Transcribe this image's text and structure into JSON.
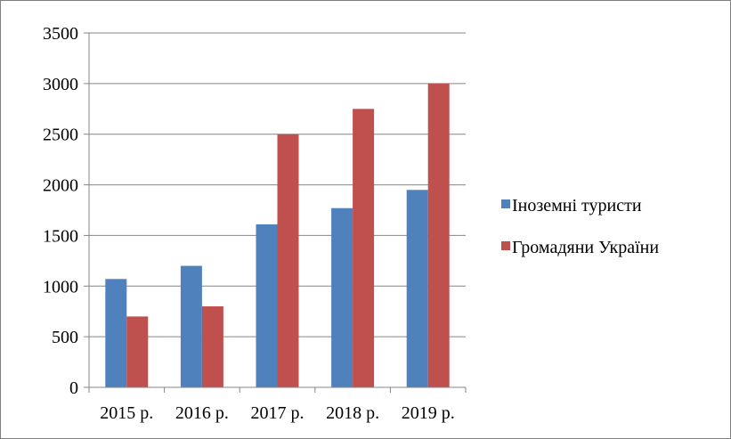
{
  "chart_data": {
    "type": "bar",
    "categories": [
      "2015 р.",
      "2016 р.",
      "2017 р.",
      "2018 р.",
      "2019 р."
    ],
    "series": [
      {
        "name": "Іноземні туристи",
        "color": "#4f81bd",
        "values": [
          1070,
          1200,
          1610,
          1770,
          1950
        ]
      },
      {
        "name": "Громадяни України",
        "color": "#c0504d",
        "values": [
          700,
          800,
          2500,
          2750,
          3000
        ]
      }
    ],
    "ylim": [
      0,
      3500
    ],
    "yticks": [
      0,
      500,
      1000,
      1500,
      2000,
      2500,
      3000,
      3500
    ],
    "grid": true,
    "legend": "right"
  }
}
